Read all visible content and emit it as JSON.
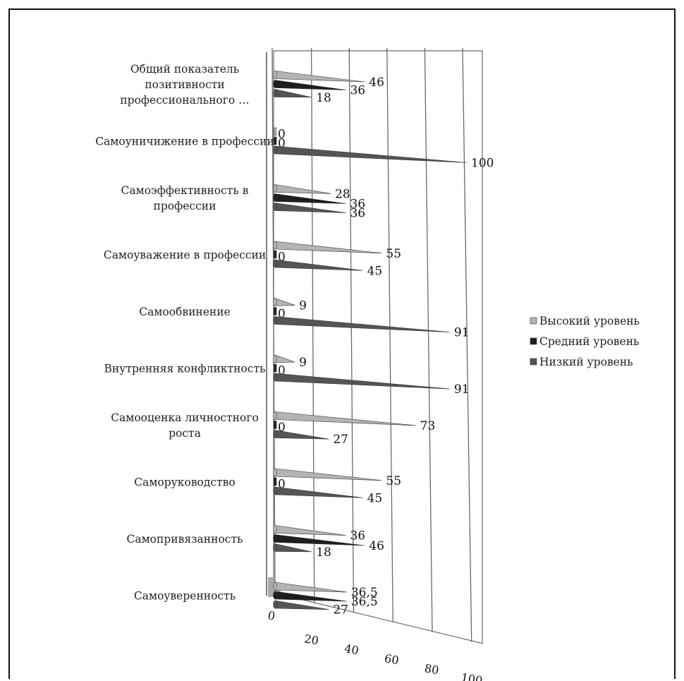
{
  "chart_data": {
    "type": "bar",
    "orientation": "horizontal",
    "style": "3d-cone",
    "categories": [
      "Общий показатель позитивности профессионального …",
      "Самоуничижение в профессии",
      "Самоэффективность в профессии",
      "Самоуважение в профессии",
      "Самообвинение",
      "Внутренняя конфликтность",
      "Самооценка личностного роста",
      "Саморуководство",
      "Самопривязанность",
      "Самоуверенность"
    ],
    "series": [
      {
        "name": "Высокий уровень",
        "color": "#b4b4b4",
        "values": [
          46,
          0,
          28,
          55,
          9,
          9,
          73,
          55,
          36,
          36.5
        ]
      },
      {
        "name": "Средний уровень",
        "color": "#1e1e1e",
        "values": [
          36,
          0,
          36,
          0,
          0,
          0,
          0,
          0,
          46,
          36.5
        ]
      },
      {
        "name": "Низкий уровень",
        "color": "#555555",
        "values": [
          18,
          100,
          36,
          45,
          91,
          91,
          27,
          45,
          18,
          27
        ]
      }
    ],
    "value_labels": [
      [
        "46",
        "36",
        "18"
      ],
      [
        "0",
        "0",
        "100"
      ],
      [
        "28",
        "36",
        "36"
      ],
      [
        "55",
        "0",
        "45"
      ],
      [
        "9",
        "0",
        "91"
      ],
      [
        "9",
        "0",
        "91"
      ],
      [
        "73",
        "0",
        "27"
      ],
      [
        "55",
        "0",
        "45"
      ],
      [
        "36",
        "46",
        "18"
      ],
      [
        "36,5",
        "36,5",
        "27"
      ]
    ],
    "xlim": [
      0,
      100
    ],
    "x_ticks": [
      "0",
      "20",
      "40",
      "60",
      "80",
      "100"
    ],
    "grid": true,
    "legend_position": "right"
  }
}
